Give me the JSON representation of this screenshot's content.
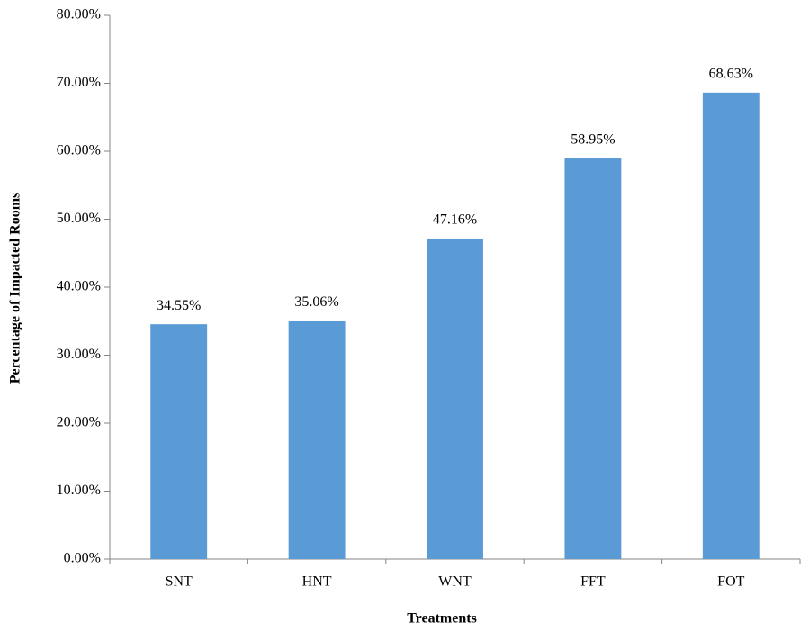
{
  "chart_data": {
    "type": "bar",
    "x_label": "Treatments",
    "y_label": "Percentage of Impacted Rooms",
    "categories": [
      "SNT",
      "HNT",
      "WNT",
      "FFT",
      "FOT"
    ],
    "values": [
      34.55,
      35.06,
      47.16,
      58.95,
      68.63
    ],
    "value_labels": [
      "34.55%",
      "35.06%",
      "47.16%",
      "58.95%",
      "68.63%"
    ],
    "color": "#5b9bd5",
    "ylim": [
      0,
      80
    ],
    "yticks": [
      {
        "value": 0,
        "label": "0.00%"
      },
      {
        "value": 10,
        "label": "10.00%"
      },
      {
        "value": 20,
        "label": "20.00%"
      },
      {
        "value": 30,
        "label": "30.00%"
      },
      {
        "value": 40,
        "label": "40.00%"
      },
      {
        "value": 50,
        "label": "50.00%"
      },
      {
        "value": 60,
        "label": "60.00%"
      },
      {
        "value": 70,
        "label": "70.00%"
      },
      {
        "value": 80,
        "label": "80.00%"
      }
    ],
    "grid": false
  }
}
